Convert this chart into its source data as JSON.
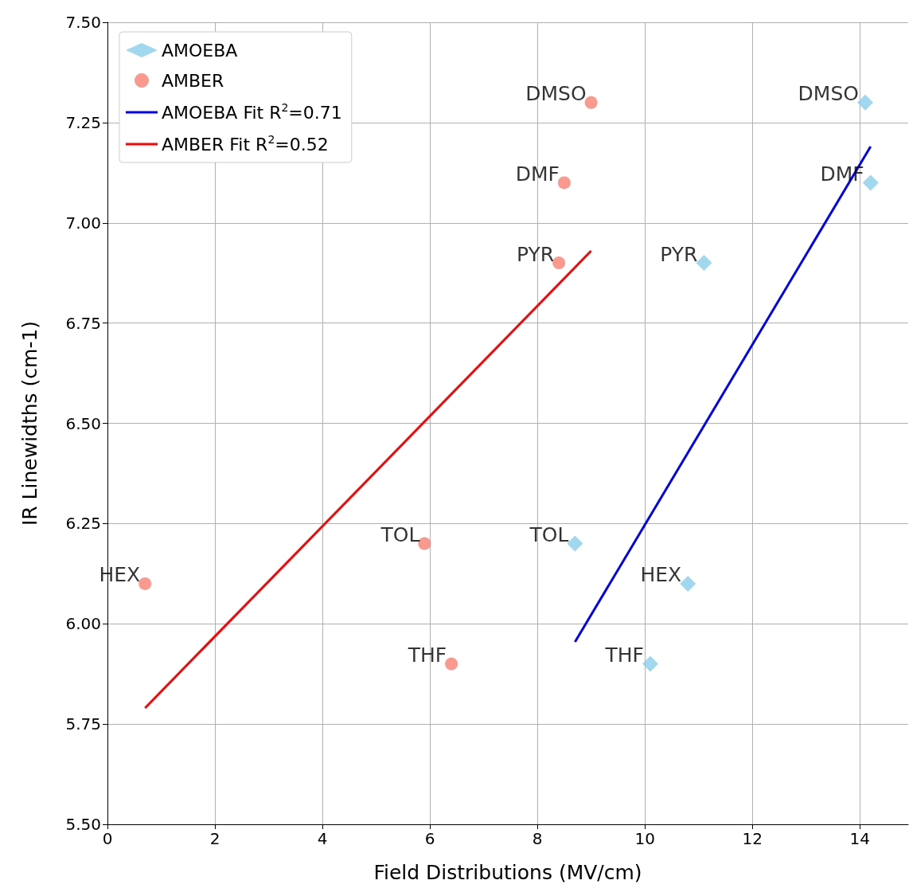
{
  "chart_data": {
    "type": "scatter",
    "xlabel": "Field Distributions (MV/cm)",
    "ylabel": "IR Linewidths (cm-1)",
    "xlim": [
      0,
      14.9
    ],
    "xticks": [
      0,
      2,
      4,
      6,
      8,
      10,
      12,
      14
    ],
    "ylim": [
      5.5,
      7.5
    ],
    "yticks": [
      {
        "value": 5.5,
        "label": "5.50"
      },
      {
        "value": 5.75,
        "label": "5.75"
      },
      {
        "value": 6,
        "label": "6.00"
      },
      {
        "value": 6.25,
        "label": "6.25"
      },
      {
        "value": 6.5,
        "label": "6.50"
      },
      {
        "value": 6.75,
        "label": "6.75"
      },
      {
        "value": 7,
        "label": "7.00"
      },
      {
        "value": 7.25,
        "label": "7.25"
      },
      {
        "value": 7.5,
        "label": "7.50"
      }
    ],
    "grid": true,
    "legend": "top left",
    "series": [
      {
        "name": "AMOEBA",
        "type": "scatter",
        "marker": "diamond",
        "color": "#87ceeb",
        "x": [
          14.1,
          14.2,
          11.1,
          8.7,
          10.8,
          10.1
        ],
        "values": [
          7.3,
          7.1,
          6.9,
          6.2,
          6.1,
          5.9
        ],
        "value_labels": [
          "DMSO",
          "DMF",
          "PYR",
          "TOL",
          "HEX",
          "THF"
        ]
      },
      {
        "name": "AMBER",
        "type": "scatter",
        "marker": "circle",
        "color": "#fa8072",
        "x": [
          9.0,
          8.5,
          8.4,
          5.9,
          0.7,
          6.4
        ],
        "values": [
          7.3,
          7.1,
          6.9,
          6.2,
          6.1,
          5.9
        ],
        "value_labels": [
          "DMSO",
          "DMF",
          "PYR",
          "TOL",
          "HEX",
          "THF"
        ]
      },
      {
        "name": "AMOEBA Fit R$^{2}$=0.71",
        "type": "line",
        "marker": "none",
        "color": "#0000ff",
        "x": [
          8.7,
          14.2
        ],
        "values": [
          5.955,
          7.19
        ]
      },
      {
        "name": "AMBER Fit R$^{2}$=0.52",
        "type": "line",
        "marker": "none",
        "color": "#ff0000",
        "x": [
          0.7,
          9.0
        ],
        "values": [
          5.79,
          6.93
        ]
      }
    ]
  }
}
